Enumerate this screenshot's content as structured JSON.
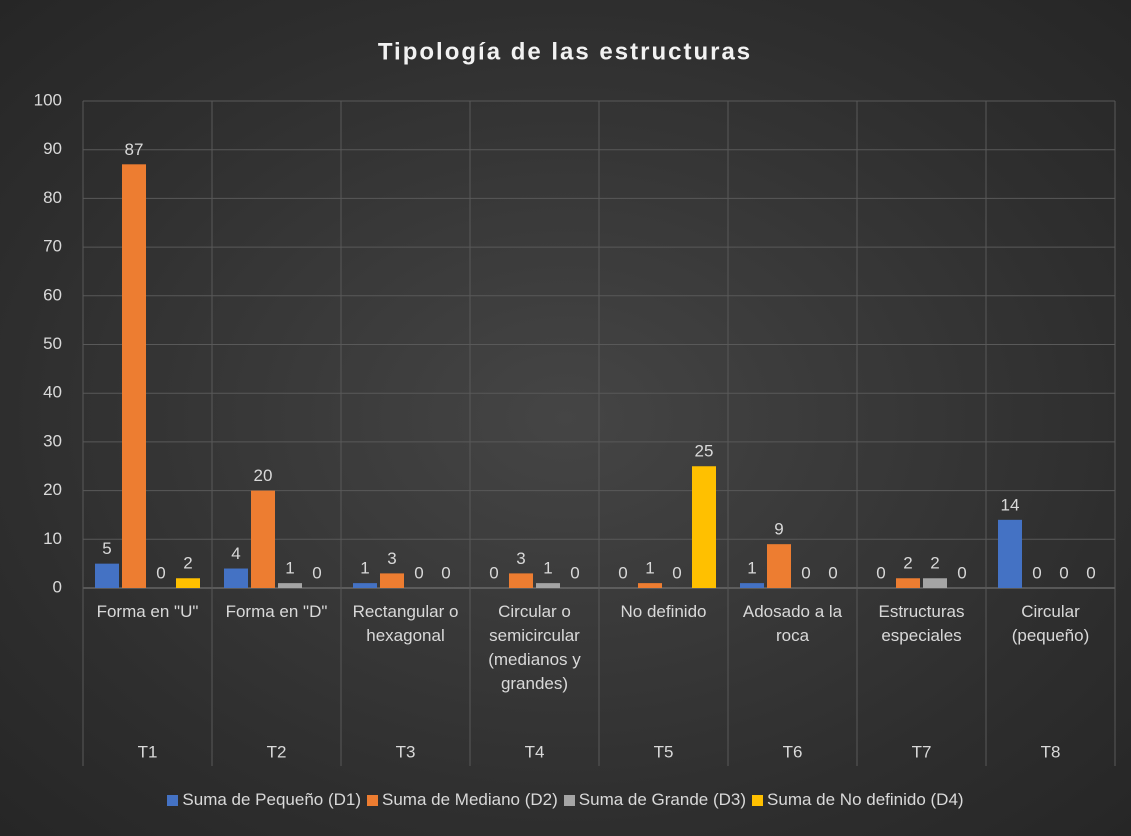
{
  "chart_data": {
    "type": "bar",
    "title": "Tipología de las estructuras",
    "categories": [
      "Forma en \"U\"",
      "Forma en \"D\"",
      "Rectangular o hexagonal",
      "Circular o semicircular (medianos y grandes)",
      "No definido",
      "Adosado a la roca",
      "Estructuras especiales",
      "Circular (pequeño)"
    ],
    "groups": [
      "T1",
      "T2",
      "T3",
      "T4",
      "T5",
      "T6",
      "T7",
      "T8"
    ],
    "series": [
      {
        "name": "Suma de Pequeño (D1)",
        "color": "#4472c4",
        "values": [
          5,
          4,
          1,
          0,
          0,
          1,
          0,
          14
        ]
      },
      {
        "name": "Suma de Mediano (D2)",
        "color": "#ed7d31",
        "values": [
          87,
          20,
          3,
          3,
          1,
          9,
          2,
          0
        ]
      },
      {
        "name": "Suma de Grande (D3)",
        "color": "#a5a5a5",
        "values": [
          0,
          1,
          0,
          1,
          0,
          0,
          2,
          0
        ]
      },
      {
        "name": "Suma de No definido (D4)",
        "color": "#ffc000",
        "values": [
          2,
          0,
          0,
          0,
          25,
          0,
          0,
          0
        ]
      }
    ],
    "ylim": [
      0,
      100
    ],
    "yticks": [
      0,
      10,
      20,
      30,
      40,
      50,
      60,
      70,
      80,
      90,
      100
    ],
    "grid": true,
    "legend": "bottom"
  }
}
